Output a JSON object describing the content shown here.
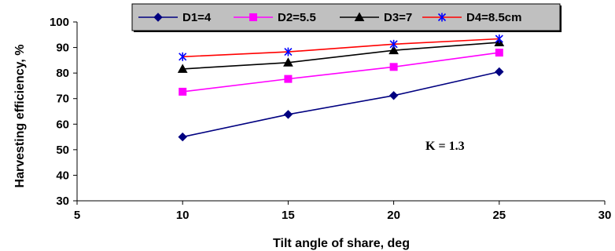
{
  "chart_data": {
    "type": "line",
    "xlabel": "Tilt angle of share, deg",
    "ylabel": "Harvesting efficiency, %",
    "xlim": [
      5,
      30
    ],
    "ylim": [
      30,
      100
    ],
    "xticks": [
      5,
      10,
      15,
      20,
      25,
      30
    ],
    "yticks": [
      30,
      40,
      50,
      60,
      70,
      80,
      90,
      100
    ],
    "x": [
      10,
      15,
      20,
      25
    ],
    "series": [
      {
        "name": "D1=4",
        "values": [
          55,
          63.8,
          71.2,
          80.5
        ],
        "color": "#000080",
        "marker": "diamond"
      },
      {
        "name": "D2=5.5",
        "values": [
          72.7,
          77.7,
          82.4,
          88
        ],
        "color": "#FF00FF",
        "marker": "square"
      },
      {
        "name": "D3=7",
        "values": [
          81.6,
          84.1,
          88.9,
          92
        ],
        "color": "#000000",
        "marker": "triangle"
      },
      {
        "name": "D4=8.5cm",
        "values": [
          86.4,
          88.3,
          91.3,
          93.4
        ],
        "color": "#FF0000",
        "marker": "star",
        "marker_color": "#0000FF"
      }
    ],
    "annotation": "K = 1.3",
    "legend_position": "top",
    "grid": false
  }
}
